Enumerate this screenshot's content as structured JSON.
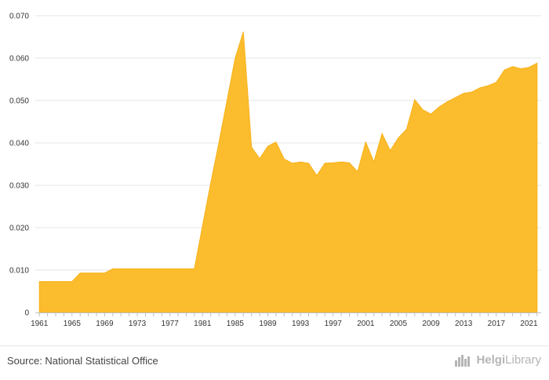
{
  "chart_data": {
    "type": "area",
    "x": [
      1961,
      1962,
      1963,
      1964,
      1965,
      1966,
      1967,
      1968,
      1969,
      1970,
      1971,
      1972,
      1973,
      1974,
      1975,
      1976,
      1977,
      1978,
      1979,
      1980,
      1981,
      1982,
      1983,
      1984,
      1985,
      1986,
      1987,
      1988,
      1989,
      1990,
      1991,
      1992,
      1993,
      1994,
      1995,
      1996,
      1997,
      1998,
      1999,
      2000,
      2001,
      2002,
      2003,
      2004,
      2005,
      2006,
      2007,
      2008,
      2009,
      2010,
      2011,
      2012,
      2013,
      2014,
      2015,
      2016,
      2017,
      2018,
      2019,
      2020,
      2021,
      2022
    ],
    "values": [
      0.0073,
      0.0073,
      0.0073,
      0.0073,
      0.0073,
      0.0093,
      0.0093,
      0.0093,
      0.0093,
      0.0103,
      0.0103,
      0.0103,
      0.0103,
      0.0103,
      0.0103,
      0.0103,
      0.0103,
      0.0103,
      0.0103,
      0.0103,
      0.0205,
      0.0305,
      0.04,
      0.05,
      0.06,
      0.0662,
      0.039,
      0.0363,
      0.0392,
      0.0402,
      0.0362,
      0.0352,
      0.0355,
      0.0352,
      0.0323,
      0.0352,
      0.0353,
      0.0355,
      0.0353,
      0.0332,
      0.0402,
      0.0355,
      0.0422,
      0.0382,
      0.0412,
      0.0432,
      0.0502,
      0.0478,
      0.0468,
      0.0485,
      0.0497,
      0.0507,
      0.0517,
      0.052,
      0.053,
      0.0535,
      0.0543,
      0.0572,
      0.058,
      0.0575,
      0.0578,
      0.0588
    ],
    "x_ticks": [
      "1961",
      "1965",
      "1969",
      "1973",
      "1977",
      "1981",
      "1985",
      "1989",
      "1993",
      "1997",
      "2001",
      "2005",
      "2009",
      "2013",
      "2017",
      "2021"
    ],
    "y_ticks": [
      {
        "value": 0,
        "label": "0"
      },
      {
        "value": 0.01,
        "label": "0.010"
      },
      {
        "value": 0.02,
        "label": "0.020"
      },
      {
        "value": 0.03,
        "label": "0.030"
      },
      {
        "value": 0.04,
        "label": "0.040"
      },
      {
        "value": 0.05,
        "label": "0.050"
      },
      {
        "value": 0.06,
        "label": "0.060"
      },
      {
        "value": 0.07,
        "label": "0.070"
      }
    ],
    "ylim": [
      0,
      0.07
    ],
    "xlim": [
      1960.5,
      2022.5
    ],
    "grid": true,
    "color": "#fbbc2d"
  },
  "footer": {
    "source": "Source: National Statistical Office",
    "brand_part1": "Helgi",
    "brand_part2": "Library",
    "brand_icon": "city-skyline-icon"
  }
}
